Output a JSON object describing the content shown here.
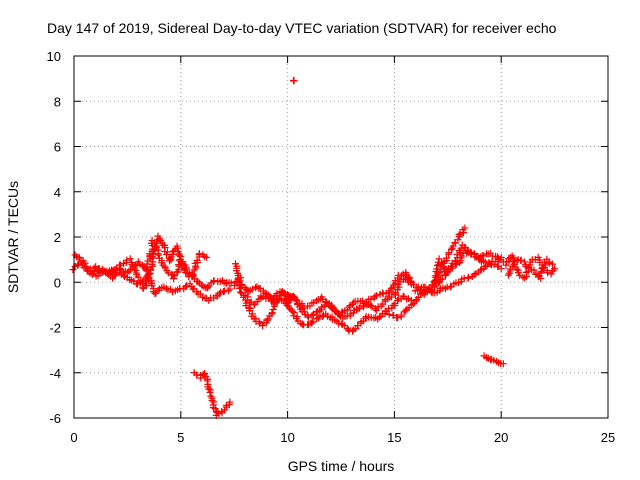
{
  "chart_data": {
    "type": "scatter",
    "title": "Day 147 of 2019, Sidereal Day-to-day VTEC variation (SDTVAR) for receiver echo",
    "xlabel": "GPS time / hours",
    "ylabel": "SDTVAR / TECUs",
    "xlim": [
      0,
      25
    ],
    "ylim": [
      -6,
      10
    ],
    "xticks": [
      0,
      5,
      10,
      15,
      20,
      25
    ],
    "yticks": [
      -6,
      -4,
      -2,
      0,
      2,
      4,
      6,
      8,
      10
    ],
    "xtick_labels": [
      "0",
      "5",
      "10",
      "15",
      "20",
      "25"
    ],
    "ytick_labels": [
      "-6",
      "-4",
      "-2",
      "0",
      "2",
      "4",
      "6",
      "8",
      "10"
    ],
    "grid": true,
    "marker": "+",
    "marker_color": "#ff0000",
    "grid_color": "#a0a0a0",
    "axis_color": "#000000",
    "tracks": [
      {
        "name": "track-a",
        "points": [
          [
            0.0,
            0.6
          ],
          [
            0.3,
            0.9
          ],
          [
            0.6,
            0.5
          ],
          [
            1.0,
            0.7
          ],
          [
            1.5,
            0.4
          ],
          [
            2.0,
            0.6
          ],
          [
            2.5,
            0.4
          ],
          [
            3.0,
            0.9
          ],
          [
            3.4,
            0.5
          ],
          [
            3.7,
            1.8
          ],
          [
            4.0,
            1.2
          ],
          [
            4.3,
            0.6
          ],
          [
            4.7,
            0.2
          ],
          [
            5.0,
            1.0
          ],
          [
            5.4,
            0.4
          ],
          [
            5.8,
            0.0
          ],
          [
            6.2,
            -0.3
          ],
          [
            6.6,
            0.1
          ],
          [
            7.0,
            0.0
          ],
          [
            7.5,
            -0.1
          ],
          [
            7.8,
            0.2
          ]
        ]
      },
      {
        "name": "track-b",
        "points": [
          [
            0.0,
            1.2
          ],
          [
            0.4,
            1.0
          ],
          [
            0.8,
            0.3
          ],
          [
            1.3,
            0.6
          ],
          [
            1.8,
            0.2
          ],
          [
            2.2,
            0.8
          ],
          [
            2.6,
            1.0
          ],
          [
            3.0,
            0.2
          ],
          [
            3.3,
            -0.3
          ],
          [
            3.6,
            0.6
          ],
          [
            3.9,
            2.0
          ],
          [
            4.2,
            1.6
          ],
          [
            4.5,
            0.9
          ],
          [
            4.8,
            1.6
          ],
          [
            5.1,
            0.6
          ],
          [
            5.5,
            0.2
          ],
          [
            5.9,
            1.3
          ],
          [
            6.2,
            1.1
          ]
        ]
      },
      {
        "name": "track-c",
        "points": [
          [
            1.0,
            0.3
          ],
          [
            1.5,
            0.5
          ],
          [
            2.0,
            0.5
          ],
          [
            2.5,
            0.2
          ],
          [
            3.0,
            -0.1
          ],
          [
            3.5,
            0.3
          ],
          [
            3.8,
            -0.5
          ],
          [
            4.2,
            -0.2
          ],
          [
            4.6,
            -0.4
          ],
          [
            5.0,
            -0.3
          ],
          [
            5.4,
            -0.1
          ],
          [
            5.8,
            -0.5
          ],
          [
            6.3,
            -0.8
          ],
          [
            6.8,
            -0.5
          ],
          [
            7.3,
            -0.3
          ]
        ]
      },
      {
        "name": "track-d",
        "points": [
          [
            7.6,
            0.8
          ],
          [
            7.8,
            -0.3
          ],
          [
            8.0,
            -0.8
          ],
          [
            8.4,
            -1.6
          ],
          [
            8.8,
            -1.9
          ],
          [
            9.2,
            -1.5
          ],
          [
            9.5,
            -0.8
          ],
          [
            9.8,
            -0.4
          ],
          [
            10.0,
            -1.0
          ],
          [
            10.3,
            -0.6
          ],
          [
            10.6,
            -1.2
          ],
          [
            11.0,
            -1.5
          ],
          [
            11.4,
            -1.3
          ],
          [
            11.8,
            -1.0
          ],
          [
            12.2,
            -1.2
          ],
          [
            12.6,
            -1.6
          ],
          [
            13.0,
            -1.4
          ],
          [
            13.4,
            -1.1
          ],
          [
            13.8,
            -1.0
          ],
          [
            14.2,
            -1.2
          ],
          [
            14.6,
            -0.8
          ],
          [
            15.0,
            -0.6
          ],
          [
            15.3,
            0.1
          ],
          [
            15.6,
            0.2
          ]
        ]
      },
      {
        "name": "track-e",
        "points": [
          [
            7.8,
            -0.1
          ],
          [
            8.2,
            -0.4
          ],
          [
            8.6,
            -0.2
          ],
          [
            9.0,
            -0.5
          ],
          [
            9.4,
            -0.9
          ],
          [
            9.8,
            -0.7
          ],
          [
            10.2,
            -1.3
          ],
          [
            10.6,
            -1.8
          ],
          [
            11.0,
            -1.9
          ],
          [
            11.4,
            -1.6
          ],
          [
            11.8,
            -1.4
          ],
          [
            12.2,
            -1.7
          ],
          [
            12.6,
            -1.9
          ],
          [
            13.0,
            -2.2
          ],
          [
            13.4,
            -1.8
          ],
          [
            13.8,
            -1.5
          ],
          [
            14.2,
            -1.6
          ],
          [
            14.6,
            -1.3
          ],
          [
            15.0,
            -1.0
          ],
          [
            15.4,
            -0.6
          ],
          [
            15.8,
            -0.8
          ]
        ]
      },
      {
        "name": "track-f",
        "points": [
          [
            8.0,
            -0.6
          ],
          [
            8.4,
            -1.0
          ],
          [
            8.8,
            -0.6
          ],
          [
            9.2,
            -0.8
          ],
          [
            9.6,
            -0.4
          ],
          [
            10.0,
            -0.5
          ],
          [
            10.4,
            -0.8
          ],
          [
            10.8,
            -1.1
          ],
          [
            11.2,
            -0.9
          ],
          [
            11.6,
            -0.7
          ],
          [
            12.0,
            -1.0
          ],
          [
            12.4,
            -1.4
          ],
          [
            12.8,
            -1.2
          ],
          [
            13.2,
            -0.8
          ],
          [
            13.6,
            -0.9
          ],
          [
            14.0,
            -0.7
          ],
          [
            14.4,
            -0.5
          ],
          [
            14.8,
            -0.4
          ],
          [
            15.2,
            0.3
          ],
          [
            15.5,
            0.4
          ],
          [
            15.8,
            0.0
          ]
        ]
      },
      {
        "name": "track-g",
        "points": [
          [
            14.8,
            -1.4
          ],
          [
            15.2,
            -1.6
          ],
          [
            15.6,
            -1.2
          ],
          [
            16.0,
            -0.8
          ],
          [
            16.4,
            -0.4
          ],
          [
            16.8,
            -0.1
          ],
          [
            17.2,
            0.6
          ],
          [
            17.6,
            1.3
          ],
          [
            18.0,
            2.0
          ],
          [
            18.3,
            2.4
          ]
        ]
      },
      {
        "name": "track-h",
        "points": [
          [
            15.6,
            0.1
          ],
          [
            16.0,
            -0.2
          ],
          [
            16.4,
            -0.5
          ],
          [
            16.8,
            -0.3
          ],
          [
            17.2,
            0.1
          ],
          [
            17.6,
            0.6
          ],
          [
            18.0,
            0.9
          ],
          [
            18.4,
            1.4
          ],
          [
            18.8,
            1.1
          ],
          [
            19.2,
            0.9
          ],
          [
            19.6,
            0.8
          ],
          [
            20.0,
            0.6
          ]
        ]
      },
      {
        "name": "track-i",
        "points": [
          [
            16.0,
            -0.4
          ],
          [
            16.4,
            -0.2
          ],
          [
            16.8,
            -0.5
          ],
          [
            17.2,
            -0.3
          ],
          [
            17.6,
            -0.2
          ],
          [
            18.0,
            0.0
          ],
          [
            18.4,
            0.2
          ],
          [
            18.8,
            0.4
          ],
          [
            19.2,
            0.6
          ],
          [
            19.6,
            0.9
          ],
          [
            20.0,
            1.1
          ]
        ]
      },
      {
        "name": "track-j",
        "points": [
          [
            16.9,
            0.0
          ],
          [
            17.1,
            1.0
          ],
          [
            17.4,
            0.5
          ],
          [
            17.8,
            0.9
          ],
          [
            18.2,
            1.6
          ],
          [
            18.6,
            1.3
          ],
          [
            19.0,
            1.1
          ],
          [
            19.4,
            1.3
          ],
          [
            19.8,
            1.1
          ],
          [
            20.1,
            0.9
          ]
        ]
      },
      {
        "name": "track-k",
        "points": [
          [
            20.2,
            0.8
          ],
          [
            20.5,
            1.2
          ],
          [
            20.8,
            0.4
          ],
          [
            21.1,
            0.2
          ],
          [
            21.4,
            0.9
          ],
          [
            21.7,
            1.1
          ],
          [
            22.0,
            0.6
          ],
          [
            22.3,
            0.4
          ],
          [
            22.5,
            0.6
          ]
        ]
      },
      {
        "name": "track-l",
        "points": [
          [
            20.3,
            0.3
          ],
          [
            20.6,
            0.9
          ],
          [
            20.9,
            1.0
          ],
          [
            21.2,
            0.7
          ],
          [
            21.5,
            0.5
          ],
          [
            21.8,
            0.2
          ],
          [
            22.1,
            1.0
          ],
          [
            22.4,
            0.8
          ]
        ]
      },
      {
        "name": "track-m",
        "points": [
          [
            5.6,
            -4.0
          ],
          [
            5.9,
            -4.2
          ],
          [
            6.1,
            -4.0
          ],
          [
            6.3,
            -4.6
          ],
          [
            6.5,
            -5.3
          ],
          [
            6.7,
            -5.9
          ],
          [
            6.9,
            -5.8
          ],
          [
            7.1,
            -5.5
          ],
          [
            7.3,
            -5.3
          ]
        ]
      },
      {
        "name": "track-n",
        "points": [
          [
            19.2,
            -3.3
          ],
          [
            19.5,
            -3.4
          ],
          [
            19.8,
            -3.5
          ],
          [
            20.1,
            -3.6
          ]
        ]
      },
      {
        "name": "outlier",
        "points": [
          [
            10.3,
            8.9
          ],
          [
            10.3,
            8.9
          ]
        ]
      }
    ]
  }
}
